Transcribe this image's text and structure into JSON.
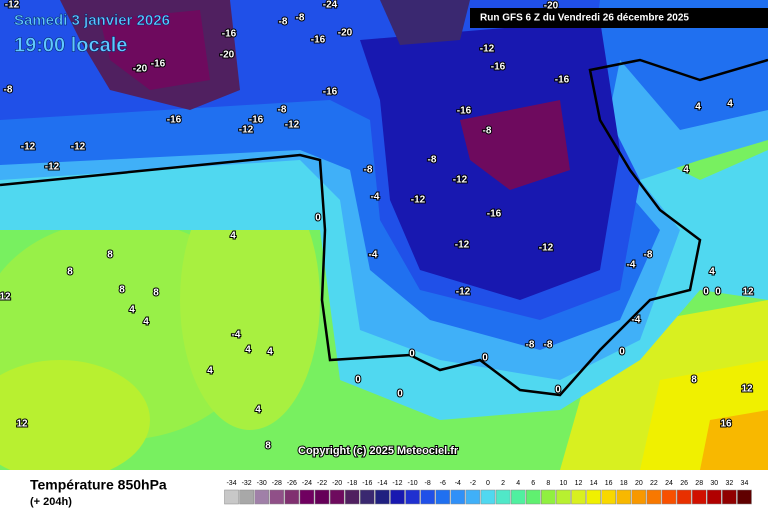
{
  "header": {
    "date": "Samedi 3 janvier 2026",
    "time": "19:00 locale",
    "run": "Run GFS 6 Z du Vendredi 26 décembre 2025"
  },
  "map": {
    "copyright": "Copyright (c) 2025 Meteociel.fr",
    "labels": [
      -24,
      -8,
      -8,
      -16,
      -20,
      -16,
      -20,
      -20,
      -16,
      -8,
      -16,
      -12,
      -16,
      -12,
      -8,
      -16,
      -12,
      -12,
      -12,
      -12,
      -16,
      -16,
      -8,
      -8,
      -12,
      -16,
      -12,
      -16,
      -12,
      -12,
      -12,
      -4,
      -4,
      -8,
      -4,
      -4,
      0,
      4,
      8,
      8,
      8,
      8,
      4,
      4,
      -4,
      4,
      4,
      4,
      0,
      0,
      0,
      4,
      8,
      12,
      12,
      8,
      12,
      16,
      4,
      4,
      4,
      4,
      0,
      0,
      12,
      -8,
      -8,
      0,
      0,
      0,
      -8,
      -20,
      -12
    ]
  },
  "footer": {
    "title": "Température 850hPa",
    "lead": "(+ 204h)",
    "scale": {
      "values": [
        -34,
        -32,
        -30,
        -28,
        -26,
        -24,
        -22,
        -20,
        -18,
        -16,
        -14,
        -12,
        -10,
        -8,
        -6,
        -4,
        -2,
        0,
        2,
        4,
        6,
        8,
        10,
        12,
        14,
        16,
        18,
        20,
        22,
        24,
        26,
        28,
        30,
        32,
        34
      ],
      "colors": [
        "#c8c8c8",
        "#a8a8a8",
        "#a080a8",
        "#905088",
        "#803070",
        "#700060",
        "#650058",
        "#6e0a5e",
        "#502060",
        "#3a2870",
        "#202080",
        "#1818b0",
        "#2030d0",
        "#2050e8",
        "#2070f0",
        "#3090f8",
        "#40b0f8",
        "#50d8f0",
        "#50e8c8",
        "#50f0a0",
        "#60f070",
        "#90f040",
        "#b8f030",
        "#d8f020",
        "#f0f000",
        "#f8d800",
        "#f8b800",
        "#f89800",
        "#f87800",
        "#f85000",
        "#e83000",
        "#d01000",
        "#b00000",
        "#900000",
        "#600000"
      ]
    }
  }
}
